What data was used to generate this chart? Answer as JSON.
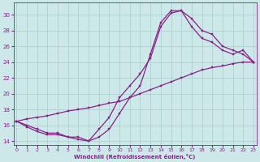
{
  "xlabel": "Windchill (Refroidissement éolien,°C)",
  "background_color": "#cce8e8",
  "grid_color": "#b0d0d0",
  "line_color": "#882288",
  "yticks": [
    14,
    16,
    18,
    20,
    22,
    24,
    26,
    28,
    30
  ],
  "xticks": [
    0,
    1,
    2,
    3,
    4,
    5,
    6,
    7,
    8,
    9,
    10,
    11,
    12,
    13,
    14,
    15,
    16,
    17,
    18,
    19,
    20,
    21,
    22,
    23
  ],
  "ylim": [
    13.5,
    31.5
  ],
  "xlim": [
    -0.3,
    23.3
  ],
  "hours": [
    0,
    1,
    2,
    3,
    4,
    5,
    6,
    7,
    8,
    9,
    10,
    11,
    12,
    13,
    14,
    15,
    16,
    17,
    18,
    19,
    20,
    21,
    22,
    23
  ],
  "line1": [
    16.5,
    16.0,
    15.5,
    15.0,
    15.0,
    14.5,
    14.5,
    14.0,
    15.5,
    17.0,
    19.5,
    21.0,
    22.5,
    24.5,
    28.5,
    30.2,
    30.5,
    29.5,
    28.0,
    27.5,
    26.0,
    25.5,
    25.0,
    24.0
  ],
  "line2": [
    16.5,
    15.8,
    15.2,
    14.8,
    14.8,
    14.5,
    14.2,
    14.0,
    14.5,
    15.5,
    17.5,
    19.5,
    21.0,
    25.0,
    29.0,
    30.5,
    30.5,
    28.5,
    27.0,
    26.5,
    25.5,
    25.0,
    25.5,
    24.0
  ],
  "line3": [
    16.5,
    16.8,
    17.0,
    17.2,
    17.5,
    17.8,
    18.0,
    18.2,
    18.5,
    18.8,
    19.0,
    19.5,
    20.0,
    20.5,
    21.0,
    21.5,
    22.0,
    22.5,
    23.0,
    23.3,
    23.5,
    23.8,
    24.0,
    24.0
  ]
}
